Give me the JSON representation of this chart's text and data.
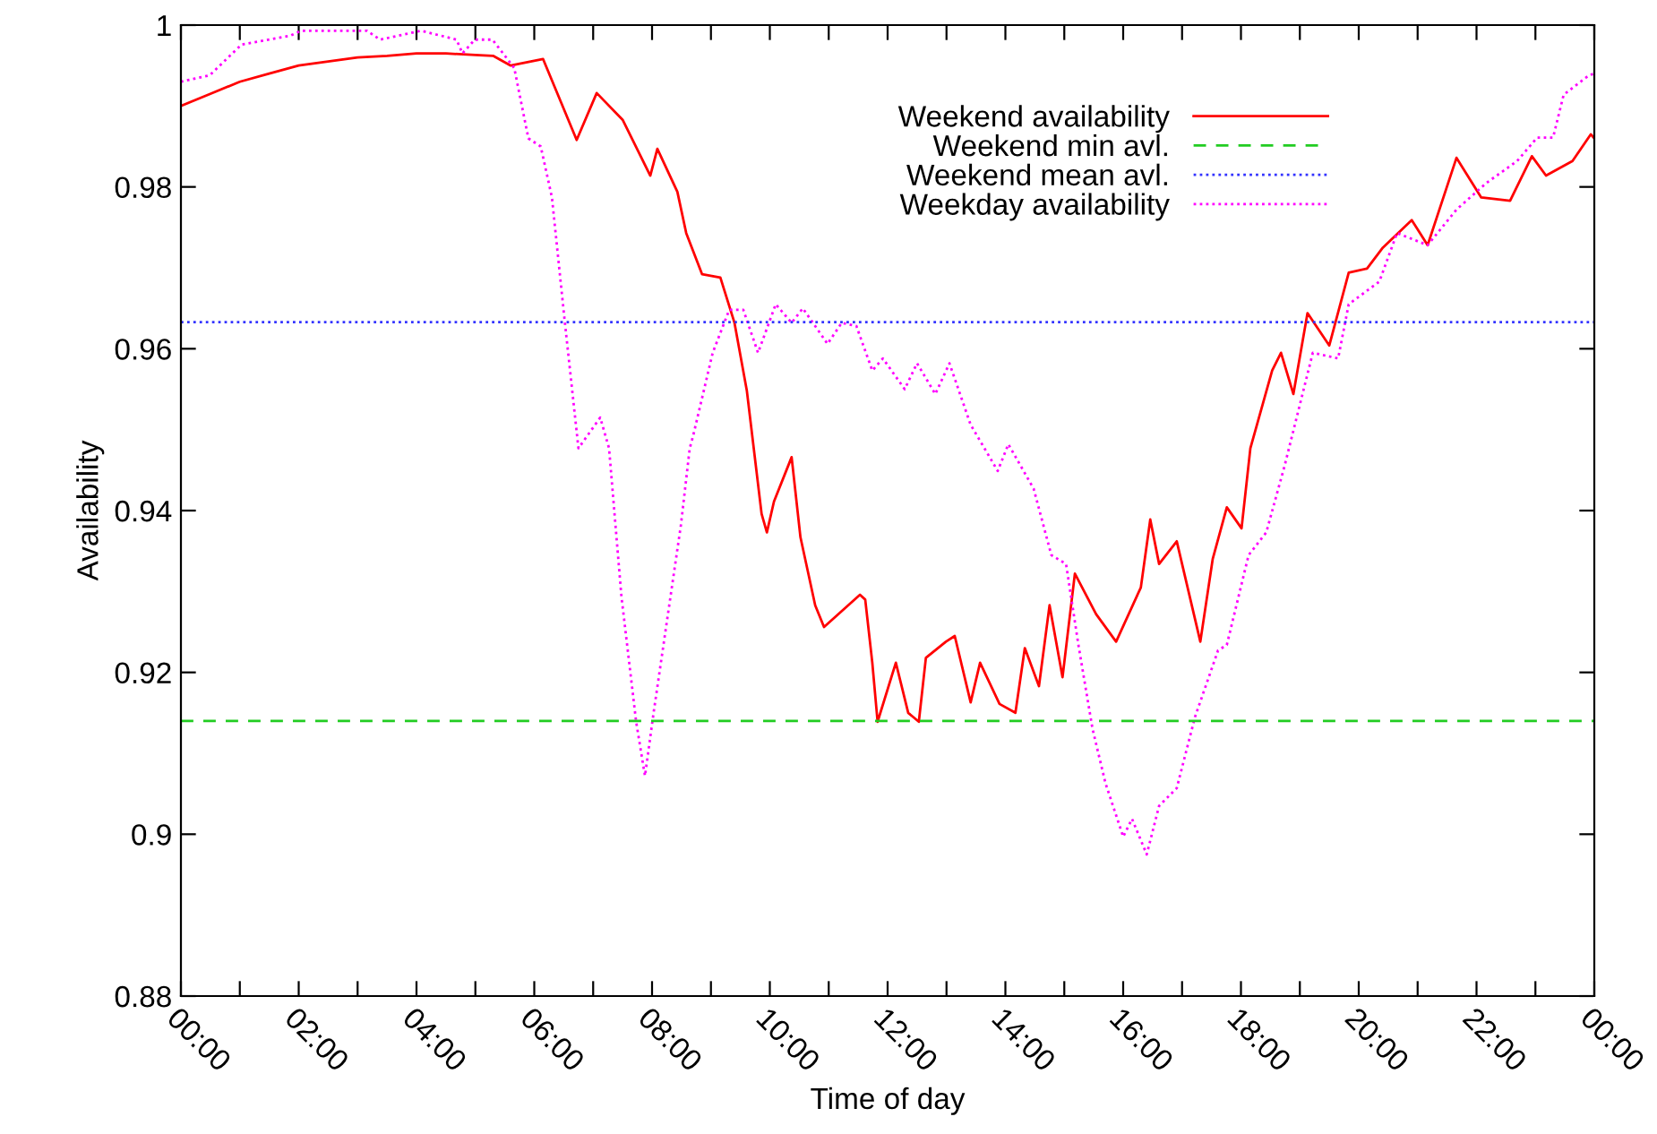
{
  "chart_data": {
    "type": "line",
    "xlabel": "Time of day",
    "ylabel": "Availability",
    "xlim": [
      0,
      24
    ],
    "ylim": [
      0.88,
      1
    ],
    "xticks": [
      {
        "value": 0,
        "label": "00:00"
      },
      {
        "value": 1,
        "label": null
      },
      {
        "value": 2,
        "label": "02:00"
      },
      {
        "value": 3,
        "label": null
      },
      {
        "value": 4,
        "label": "04:00"
      },
      {
        "value": 5,
        "label": null
      },
      {
        "value": 6,
        "label": "06:00"
      },
      {
        "value": 7,
        "label": null
      },
      {
        "value": 8,
        "label": "08:00"
      },
      {
        "value": 9,
        "label": null
      },
      {
        "value": 10,
        "label": "10:00"
      },
      {
        "value": 11,
        "label": null
      },
      {
        "value": 12,
        "label": "12:00"
      },
      {
        "value": 13,
        "label": null
      },
      {
        "value": 14,
        "label": "14:00"
      },
      {
        "value": 15,
        "label": null
      },
      {
        "value": 16,
        "label": "16:00"
      },
      {
        "value": 17,
        "label": null
      },
      {
        "value": 18,
        "label": "18:00"
      },
      {
        "value": 19,
        "label": null
      },
      {
        "value": 20,
        "label": "20:00"
      },
      {
        "value": 21,
        "label": null
      },
      {
        "value": 22,
        "label": "22:00"
      },
      {
        "value": 23,
        "label": null
      },
      {
        "value": 24,
        "label": "00:00"
      }
    ],
    "yticks": [
      0.88,
      0.9,
      0.92,
      0.94,
      0.96,
      0.98,
      {
        "value": 1,
        "label": "1"
      }
    ],
    "grid": false,
    "legend": "top right",
    "series": [
      {
        "name": "Weekend availability",
        "color": "#ff0000",
        "line_style": "solid",
        "x": [
          0,
          0.5,
          1,
          1.5,
          2,
          2.5,
          3,
          3.5,
          4,
          4.5,
          5,
          5.3,
          5.6,
          6.15,
          6.72,
          7.06,
          7.5,
          7.97,
          8.09,
          8.43,
          8.58,
          8.85,
          9.16,
          9.4,
          9.61,
          9.86,
          9.95,
          10.07,
          10.37,
          10.52,
          10.77,
          10.92,
          11.53,
          11.62,
          11.74,
          11.83,
          12.14,
          12.35,
          12.53,
          12.65,
          12.99,
          13.14,
          13.41,
          13.57,
          13.9,
          14.17,
          14.33,
          14.57,
          14.75,
          14.97,
          15.18,
          15.54,
          15.88,
          16.3,
          16.46,
          16.61,
          16.91,
          17.31,
          17.52,
          17.76,
          18.01,
          18.16,
          18.53,
          18.68,
          18.89,
          19.13,
          19.5,
          19.83,
          20.14,
          20.41,
          20.9,
          21.17,
          21.66,
          22.08,
          22.57,
          22.94,
          23.18,
          23.63,
          23.94,
          24
        ],
        "values": [
          0.99,
          0.9915,
          0.993,
          0.994,
          0.995,
          0.9955,
          0.996,
          0.9962,
          0.9965,
          0.9965,
          0.9963,
          0.9962,
          0.995,
          0.9958,
          0.9858,
          0.9916,
          0.9883,
          0.9814,
          0.9847,
          0.9794,
          0.9743,
          0.9692,
          0.9688,
          0.9632,
          0.9548,
          0.9396,
          0.9373,
          0.9411,
          0.9466,
          0.9367,
          0.9283,
          0.9256,
          0.9296,
          0.929,
          0.9212,
          0.9139,
          0.9212,
          0.915,
          0.9139,
          0.9218,
          0.9238,
          0.9245,
          0.9163,
          0.9212,
          0.9161,
          0.915,
          0.923,
          0.9183,
          0.9283,
          0.9194,
          0.9322,
          0.9272,
          0.9238,
          0.9305,
          0.9389,
          0.9334,
          0.9362,
          0.9238,
          0.934,
          0.9404,
          0.9378,
          0.9477,
          0.9573,
          0.9595,
          0.9544,
          0.9644,
          0.9604,
          0.9694,
          0.9699,
          0.9725,
          0.9759,
          0.9728,
          0.9836,
          0.9787,
          0.9783,
          0.9838,
          0.9814,
          0.9832,
          0.9865,
          0.986
        ]
      },
      {
        "name": "Weekday availability",
        "color": "#ff00ff",
        "line_style": "dotted",
        "x": [
          0,
          0.49,
          1.03,
          1.86,
          2.04,
          3.16,
          3.38,
          4.08,
          4.68,
          4.78,
          4.99,
          5.29,
          5.66,
          5.9,
          6.11,
          6.3,
          6.51,
          6.75,
          7.12,
          7.27,
          7.48,
          7.73,
          7.88,
          8.03,
          8.27,
          8.49,
          8.64,
          8.7,
          9.03,
          9.31,
          9.55,
          9.8,
          10.1,
          10.37,
          10.56,
          10.98,
          11.22,
          11.47,
          11.74,
          11.92,
          12.29,
          12.5,
          12.81,
          13.05,
          13.41,
          13.87,
          14.05,
          14.48,
          14.78,
          15.03,
          15.24,
          15.48,
          15.7,
          16.0,
          16.15,
          16.4,
          16.61,
          16.91,
          17.22,
          17.61,
          17.76,
          18.13,
          18.43,
          18.74,
          19.22,
          19.65,
          19.83,
          20.35,
          20.65,
          21.17,
          21.66,
          22.17,
          22.69,
          23.03,
          23.3,
          23.48,
          23.91,
          24
        ],
        "values": [
          0.993,
          0.9938,
          0.9976,
          0.9987,
          0.9993,
          0.9993,
          0.9982,
          0.9993,
          0.9982,
          0.9965,
          0.9982,
          0.9982,
          0.9947,
          0.986,
          0.985,
          0.9787,
          0.9639,
          0.9477,
          0.9515,
          0.9477,
          0.9294,
          0.9139,
          0.9072,
          0.9152,
          0.9272,
          0.9382,
          0.9477,
          0.9493,
          0.9595,
          0.9648,
          0.9648,
          0.9595,
          0.9655,
          0.9632,
          0.965,
          0.9606,
          0.9632,
          0.9628,
          0.9573,
          0.9588,
          0.955,
          0.9582,
          0.9544,
          0.9582,
          0.9506,
          0.9449,
          0.9482,
          0.9427,
          0.9345,
          0.9334,
          0.9234,
          0.913,
          0.9063,
          0.8997,
          0.9019,
          0.8975,
          0.9035,
          0.9057,
          0.9145,
          0.9227,
          0.9234,
          0.9345,
          0.9373,
          0.9455,
          0.9595,
          0.9588,
          0.9655,
          0.9683,
          0.9743,
          0.9728,
          0.9772,
          0.9805,
          0.9832,
          0.9861,
          0.9861,
          0.9914,
          0.9938,
          0.994
        ]
      }
    ],
    "ref_lines": [
      {
        "axis": "y",
        "value": 0.914,
        "label": "Weekend min avl.",
        "color": "#22cc22",
        "line_style": "dashed"
      },
      {
        "axis": "y",
        "value": 0.9633,
        "label": "Weekend mean avl.",
        "color": "#3333ff",
        "line_style": "dotted"
      }
    ]
  }
}
